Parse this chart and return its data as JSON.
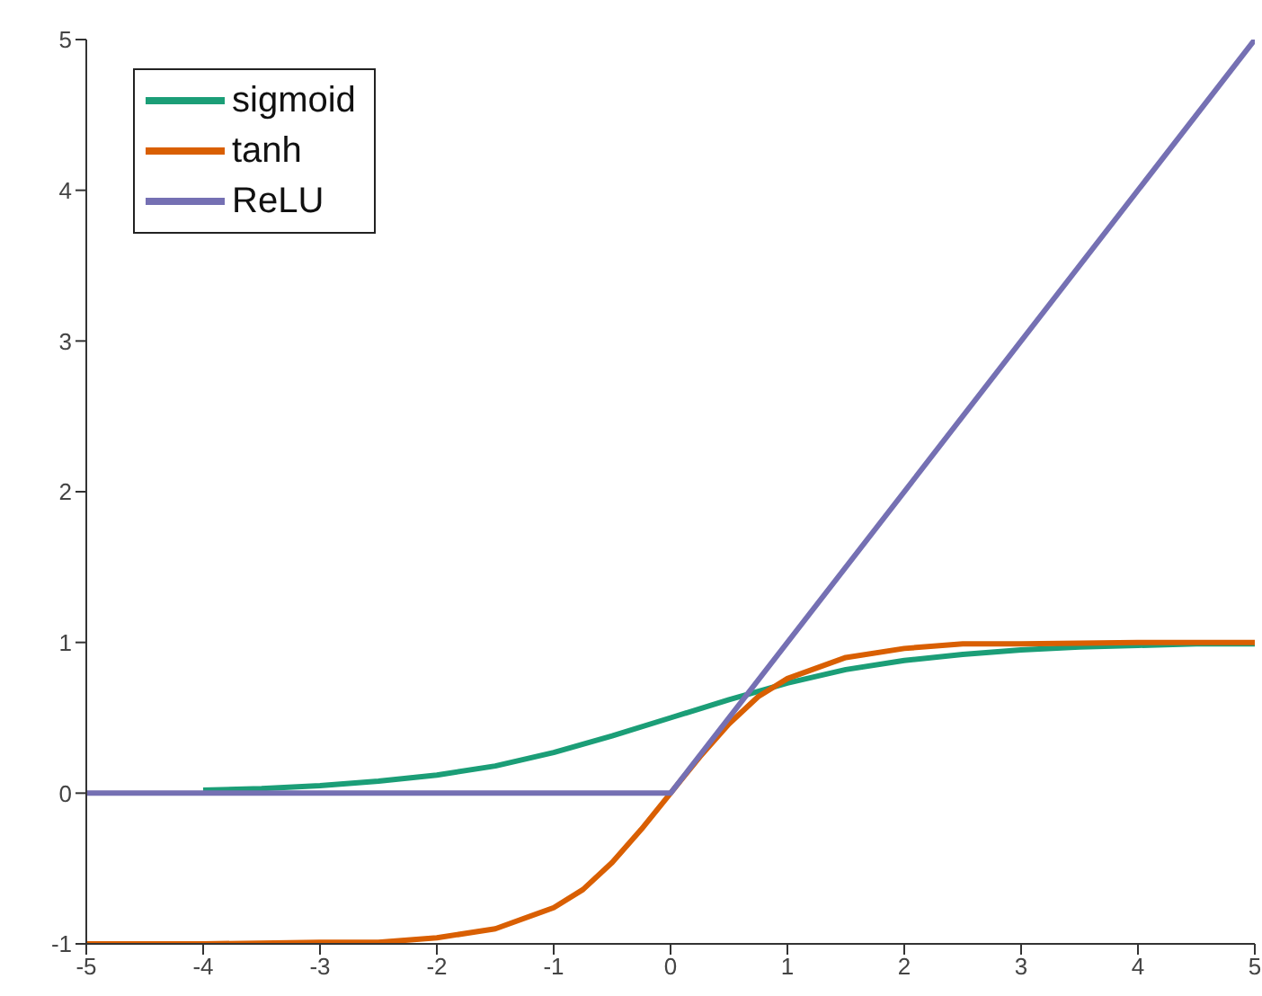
{
  "chart_data": {
    "type": "line",
    "xlim": [
      -5,
      5
    ],
    "xticks": [
      -5,
      -4,
      -3,
      -2,
      -1,
      0,
      1,
      2,
      3,
      4,
      5
    ],
    "ylim": [
      -1,
      5
    ],
    "yticks": [
      -1,
      0,
      1,
      2,
      3,
      4,
      5
    ],
    "grid": false,
    "legend": "top left",
    "marker": "none",
    "line_style": "solid",
    "series": [
      {
        "name": "sigmoid",
        "color": "#1b9e77",
        "x": [
          -4,
          -3.5,
          -3,
          -2.5,
          -2,
          -1.5,
          -1,
          -0.5,
          0,
          0.5,
          1,
          1.5,
          2,
          2.5,
          3,
          3.5,
          4,
          4.5,
          5
        ],
        "values": [
          0.02,
          0.03,
          0.05,
          0.08,
          0.12,
          0.18,
          0.27,
          0.38,
          0.5,
          0.62,
          0.73,
          0.82,
          0.88,
          0.92,
          0.95,
          0.97,
          0.98,
          0.99,
          0.99
        ]
      },
      {
        "name": "tanh",
        "color": "#d95f02",
        "x": [
          -5,
          -4,
          -3,
          -2.5,
          -2,
          -1.5,
          -1,
          -0.75,
          -0.5,
          -0.25,
          0,
          0.25,
          0.5,
          0.75,
          1,
          1.5,
          2,
          2.5,
          3,
          4,
          5
        ],
        "values": [
          -1,
          -1,
          -0.99,
          -0.99,
          -0.96,
          -0.9,
          -0.76,
          -0.64,
          -0.46,
          -0.24,
          0,
          0.24,
          0.46,
          0.64,
          0.76,
          0.9,
          0.96,
          0.99,
          0.99,
          1,
          1
        ]
      },
      {
        "name": "ReLU",
        "color": "#7570b3",
        "x": [
          -5,
          0,
          5
        ],
        "values": [
          0,
          0,
          5
        ]
      }
    ]
  }
}
